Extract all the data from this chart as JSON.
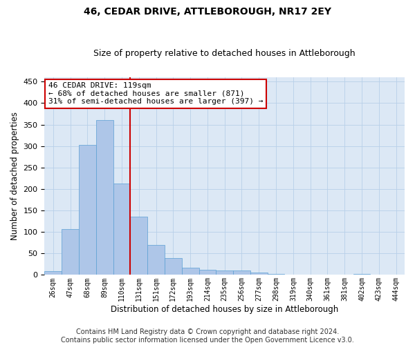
{
  "title": "46, CEDAR DRIVE, ATTLEBOROUGH, NR17 2EY",
  "subtitle": "Size of property relative to detached houses in Attleborough",
  "xlabel": "Distribution of detached houses by size in Attleborough",
  "ylabel": "Number of detached properties",
  "categories": [
    "26sqm",
    "47sqm",
    "68sqm",
    "89sqm",
    "110sqm",
    "131sqm",
    "151sqm",
    "172sqm",
    "193sqm",
    "214sqm",
    "235sqm",
    "256sqm",
    "277sqm",
    "298sqm",
    "319sqm",
    "340sqm",
    "361sqm",
    "381sqm",
    "402sqm",
    "423sqm",
    "444sqm"
  ],
  "values": [
    8,
    107,
    302,
    360,
    212,
    135,
    70,
    40,
    16,
    12,
    10,
    10,
    5,
    2,
    0,
    0,
    0,
    0,
    3,
    0,
    0
  ],
  "bar_color": "#aec6e8",
  "bar_edge_color": "#5a9fd4",
  "vline_x": 4.5,
  "vline_color": "#cc0000",
  "annotation_text": "46 CEDAR DRIVE: 119sqm\n← 68% of detached houses are smaller (871)\n31% of semi-detached houses are larger (397) →",
  "annotation_box_color": "#cc0000",
  "ylim": [
    0,
    460
  ],
  "yticks": [
    0,
    50,
    100,
    150,
    200,
    250,
    300,
    350,
    400,
    450
  ],
  "grid_color": "#b8cfe8",
  "background_color": "#dce8f5",
  "footer": "Contains HM Land Registry data © Crown copyright and database right 2024.\nContains public sector information licensed under the Open Government Licence v3.0.",
  "title_fontsize": 10,
  "subtitle_fontsize": 9,
  "annotation_fontsize": 8,
  "footer_fontsize": 7,
  "fig_width": 6.0,
  "fig_height": 5.0
}
